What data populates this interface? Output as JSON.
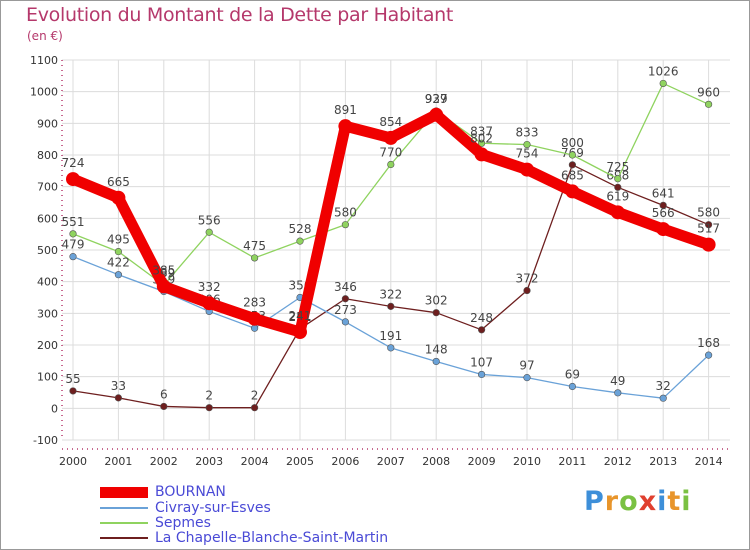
{
  "title": "Evolution du Montant de la Dette par Habitant",
  "unit": "(en €)",
  "logo": "Proxiti",
  "chart_data": {
    "type": "line",
    "title": "Evolution du Montant de la Dette par Habitant",
    "ylabel": "(en €)",
    "x": [
      2000,
      2001,
      2002,
      2003,
      2004,
      2005,
      2006,
      2007,
      2008,
      2009,
      2010,
      2011,
      2012,
      2013,
      2014
    ],
    "ylim": [
      -100,
      1100
    ],
    "yticks": [
      -100,
      0,
      100,
      200,
      300,
      400,
      500,
      600,
      700,
      800,
      900,
      1000,
      1100
    ],
    "grid": true,
    "legend_position": "bottom-left",
    "series": [
      {
        "name": "La Chapelle-Blanche-Saint-Martin",
        "color": "#6e1f1f",
        "values": [
          55,
          33,
          6,
          2,
          2,
          251,
          346,
          322,
          302,
          248,
          372,
          769,
          698,
          641,
          580
        ]
      },
      {
        "name": "Sepmes",
        "color": "#8fd35f",
        "values": [
          551,
          495,
          389,
          556,
          475,
          528,
          580,
          770,
          939,
          837,
          833,
          800,
          725,
          1026,
          960
        ]
      },
      {
        "name": "Civray-sur-Esves",
        "color": "#6aa2d8",
        "values": [
          479,
          422,
          369,
          306,
          253,
          350,
          273,
          191,
          148,
          107,
          97,
          69,
          49,
          32,
          168
        ]
      },
      {
        "name": "BOURNAN",
        "color": "#f00000",
        "values": [
          724,
          665,
          385,
          332,
          283,
          241,
          891,
          854,
          927,
          802,
          754,
          685,
          619,
          566,
          517
        ]
      }
    ],
    "legend": [
      "BOURNAN",
      "Civray-sur-Esves",
      "Sepmes",
      "La Chapelle-Blanche-Saint-Martin"
    ]
  }
}
